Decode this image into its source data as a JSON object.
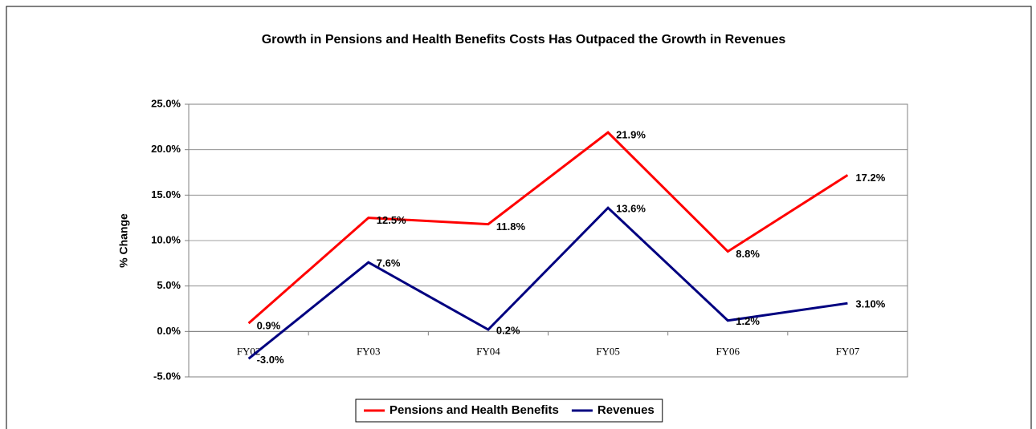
{
  "chart_data": {
    "type": "line",
    "title": "Growth in Pensions and Health Benefits Costs Has Outpaced the Growth in Revenues",
    "y_label": "% Change",
    "categories": [
      "FY02",
      "FY03",
      "FY04",
      "FY05",
      "FY06",
      "FY07"
    ],
    "series": [
      {
        "name": "Pensions and Health Benefits",
        "color": "#ff0000",
        "values": [
          0.9,
          12.5,
          11.8,
          21.9,
          8.8,
          17.2
        ],
        "value_labels": [
          "0.9%",
          "12.5%",
          "11.8%",
          "21.9%",
          "8.8%",
          "17.2%"
        ]
      },
      {
        "name": "Revenues",
        "color": "#000080",
        "values": [
          -3.0,
          7.6,
          0.2,
          13.6,
          1.2,
          3.1
        ],
        "value_labels": [
          "-3.0%",
          "7.6%",
          "0.2%",
          "13.6%",
          "1.2%",
          "3.10%"
        ]
      }
    ],
    "ylim": [
      -5,
      25
    ],
    "yticks": [
      {
        "value": -5,
        "label": "-5.0%"
      },
      {
        "value": 0,
        "label": "0.0%"
      },
      {
        "value": 5,
        "label": "5.0%"
      },
      {
        "value": 10,
        "label": "10.0%"
      },
      {
        "value": 15,
        "label": "15.0%"
      },
      {
        "value": 20,
        "label": "20.0%"
      },
      {
        "value": 25,
        "label": "25.0%"
      }
    ],
    "grid": true,
    "legend": "bottom"
  }
}
